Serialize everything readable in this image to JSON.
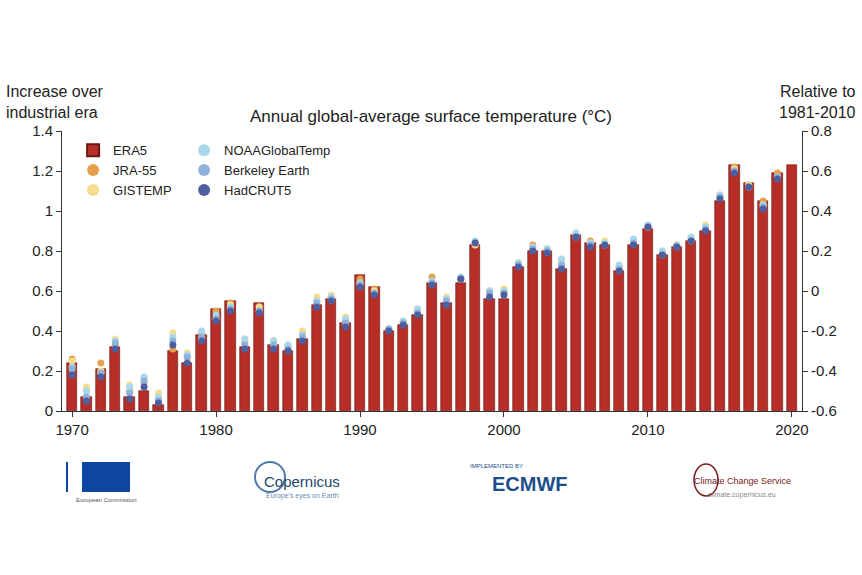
{
  "chart_data": {
    "type": "bar",
    "title": "Annual global-average surface temperature (°C)",
    "ylabel": "Increase over\nindustrial era",
    "y2label": "Relative to\n1981-2010",
    "x": [
      1970,
      1971,
      1972,
      1973,
      1974,
      1975,
      1976,
      1977,
      1978,
      1979,
      1980,
      1981,
      1982,
      1983,
      1984,
      1985,
      1986,
      1987,
      1988,
      1989,
      1990,
      1991,
      1992,
      1993,
      1994,
      1995,
      1996,
      1997,
      1998,
      1999,
      2000,
      2001,
      2002,
      2003,
      2004,
      2005,
      2006,
      2007,
      2008,
      2009,
      2010,
      2011,
      2012,
      2013,
      2014,
      2015,
      2016,
      2017,
      2018,
      2019,
      2020
    ],
    "series": [
      {
        "name": "ERA5",
        "type": "bar",
        "color": "#b72e27",
        "values": [
          0.24,
          0.07,
          0.21,
          0.32,
          0.07,
          0.1,
          0.03,
          0.3,
          0.24,
          0.38,
          0.51,
          0.55,
          0.32,
          0.54,
          0.33,
          0.3,
          0.36,
          0.53,
          0.56,
          0.44,
          0.68,
          0.62,
          0.4,
          0.43,
          0.48,
          0.64,
          0.54,
          0.64,
          0.83,
          0.56,
          0.56,
          0.72,
          0.8,
          0.8,
          0.71,
          0.88,
          0.84,
          0.83,
          0.7,
          0.83,
          0.91,
          0.78,
          0.82,
          0.85,
          0.9,
          1.05,
          1.23,
          1.14,
          1.05,
          1.19,
          1.23
        ]
      },
      {
        "name": "JRA-55",
        "type": "scatter",
        "marker": "circle",
        "color": "#e3a24a",
        "values": [
          0.26,
          0.1,
          0.24,
          0.33,
          0.1,
          0.14,
          0.06,
          0.31,
          0.27,
          0.39,
          0.5,
          0.54,
          0.34,
          0.52,
          0.35,
          0.32,
          0.39,
          0.55,
          0.57,
          0.45,
          0.66,
          0.61,
          0.41,
          0.44,
          0.5,
          0.67,
          0.56,
          0.66,
          0.84,
          0.6,
          0.6,
          0.74,
          0.83,
          0.81,
          0.74,
          0.88,
          0.85,
          0.84,
          0.72,
          0.84,
          0.92,
          0.79,
          0.83,
          0.86,
          0.92,
          1.07,
          1.22,
          1.13,
          1.05,
          1.19,
          null
        ]
      },
      {
        "name": "GISTEMP",
        "type": "scatter",
        "marker": "circle",
        "color": "#f7dc8c",
        "values": [
          0.25,
          0.12,
          0.2,
          0.36,
          0.13,
          0.17,
          0.09,
          0.39,
          0.29,
          0.36,
          0.46,
          0.53,
          0.36,
          0.52,
          0.35,
          0.33,
          0.4,
          0.57,
          0.58,
          0.47,
          0.64,
          0.6,
          0.41,
          0.45,
          0.51,
          0.65,
          0.57,
          0.66,
          0.83,
          0.6,
          0.61,
          0.74,
          0.82,
          0.81,
          0.74,
          0.89,
          0.84,
          0.85,
          0.72,
          0.85,
          0.92,
          0.8,
          0.83,
          0.86,
          0.93,
          1.08,
          1.21,
          1.13,
          1.03,
          1.17,
          null
        ]
      },
      {
        "name": "NOAAGlobalTemp",
        "type": "scatter",
        "marker": "circle",
        "color": "#a9d7ec",
        "values": [
          0.22,
          0.1,
          0.19,
          0.35,
          0.12,
          0.17,
          0.07,
          0.37,
          0.28,
          0.4,
          0.48,
          0.52,
          0.36,
          0.5,
          0.35,
          0.33,
          0.38,
          0.55,
          0.57,
          0.46,
          0.64,
          0.59,
          0.41,
          0.45,
          0.51,
          0.65,
          0.56,
          0.67,
          0.85,
          0.6,
          0.6,
          0.74,
          0.82,
          0.81,
          0.76,
          0.89,
          0.84,
          0.84,
          0.73,
          0.86,
          0.93,
          0.8,
          0.83,
          0.87,
          0.92,
          1.08,
          1.2,
          1.12,
          1.03,
          1.17,
          null
        ]
      },
      {
        "name": "Berkeley Earth",
        "type": "scatter",
        "marker": "circle",
        "color": "#8fb2da",
        "values": [
          0.21,
          0.07,
          0.19,
          0.34,
          0.09,
          0.15,
          0.05,
          0.35,
          0.27,
          0.37,
          0.46,
          0.51,
          0.33,
          0.5,
          0.33,
          0.31,
          0.37,
          0.54,
          0.56,
          0.44,
          0.63,
          0.59,
          0.41,
          0.44,
          0.49,
          0.64,
          0.55,
          0.66,
          0.84,
          0.59,
          0.59,
          0.73,
          0.81,
          0.8,
          0.73,
          0.87,
          0.83,
          0.83,
          0.71,
          0.84,
          0.92,
          0.78,
          0.82,
          0.85,
          0.91,
          1.07,
          1.2,
          1.12,
          1.02,
          1.17,
          null
        ]
      },
      {
        "name": "HadCRUT5",
        "type": "scatter",
        "marker": "circle",
        "color": "#4d5f9f",
        "values": [
          0.18,
          0.05,
          0.17,
          0.31,
          0.06,
          0.12,
          0.04,
          0.33,
          0.24,
          0.35,
          0.45,
          0.5,
          0.31,
          0.49,
          0.31,
          0.3,
          0.35,
          0.52,
          0.55,
          0.42,
          0.62,
          0.58,
          0.4,
          0.43,
          0.48,
          0.63,
          0.53,
          0.66,
          0.84,
          0.57,
          0.58,
          0.72,
          0.8,
          0.79,
          0.71,
          0.87,
          0.82,
          0.83,
          0.7,
          0.83,
          0.92,
          0.78,
          0.82,
          0.85,
          0.9,
          1.06,
          1.19,
          1.12,
          1.01,
          1.16,
          null
        ]
      }
    ],
    "xlim": [
      1969.3,
      2020.7
    ],
    "xticks": [
      1970,
      1980,
      1990,
      2000,
      2010,
      2020
    ],
    "ylim": [
      0,
      1.4
    ],
    "yticks": [
      0,
      0.2,
      0.4,
      0.6,
      0.8,
      1,
      1.2,
      1.4
    ],
    "y2lim": [
      -0.6,
      0.8
    ],
    "y2ticks": [
      -0.6,
      -0.4,
      -0.2,
      0,
      0.2,
      0.4,
      0.6,
      0.8
    ],
    "grid": false,
    "legend": "top left",
    "annotations": [
      "European Commission",
      "Copernicus",
      "Europe's eyes on Earth",
      "IMPLEMENTED BY",
      "ECMWF",
      "Climate Change Service",
      "climate.copernicus.eu"
    ]
  }
}
